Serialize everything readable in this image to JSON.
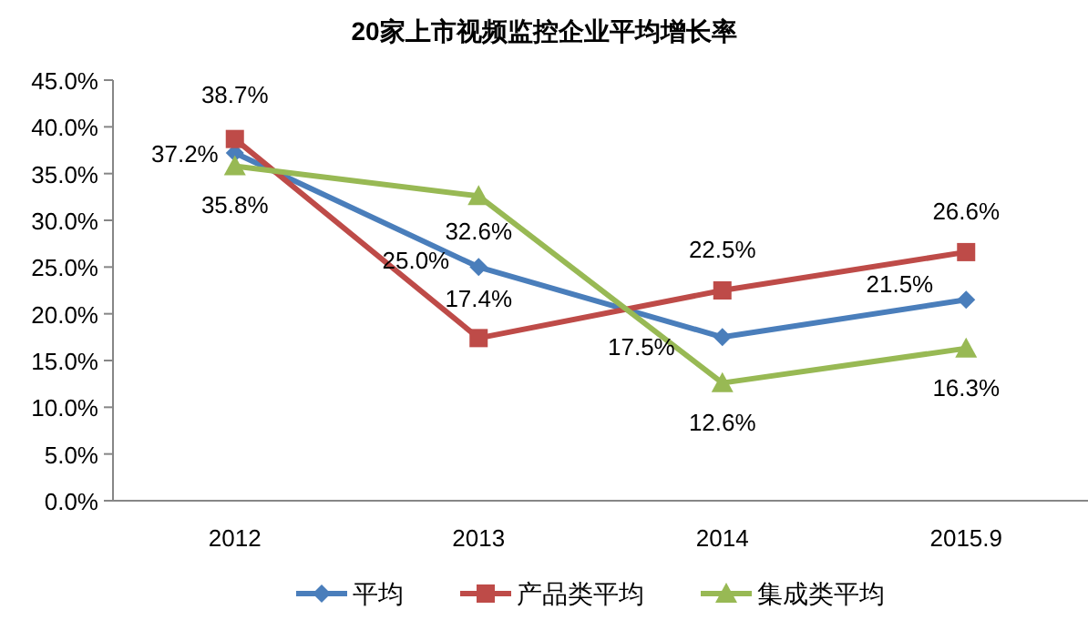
{
  "chart_data": {
    "type": "line",
    "title": "20家上市视频监控企业平均增长率",
    "categories": [
      "2012",
      "2013",
      "2014",
      "2015.9"
    ],
    "series": [
      {
        "name": "平均",
        "color": "#4a7ebb",
        "marker": "diamond",
        "values": [
          37.2,
          25.0,
          17.5,
          21.5
        ],
        "value_labels": [
          "37.2%",
          "25.0%",
          "17.5%",
          "21.5%"
        ]
      },
      {
        "name": "产品类平均",
        "color": "#be4b48",
        "marker": "square",
        "values": [
          38.7,
          17.4,
          22.5,
          26.6
        ],
        "value_labels": [
          "38.7%",
          "17.4%",
          "22.5%",
          "26.6%"
        ]
      },
      {
        "name": "集成类平均",
        "color": "#98b954",
        "marker": "triangle",
        "values": [
          35.8,
          32.6,
          12.6,
          16.3
        ],
        "value_labels": [
          "35.8%",
          "32.6%",
          "12.6%",
          "16.3%"
        ]
      }
    ],
    "ylim": [
      0,
      45
    ],
    "yticks": [
      {
        "value": 0,
        "label": "0.0%"
      },
      {
        "value": 5,
        "label": "5.0%"
      },
      {
        "value": 10,
        "label": "10.0%"
      },
      {
        "value": 15,
        "label": "15.0%"
      },
      {
        "value": 20,
        "label": "20.0%"
      },
      {
        "value": 25,
        "label": "25.0%"
      },
      {
        "value": 30,
        "label": "30.0%"
      },
      {
        "value": 35,
        "label": "35.0%"
      },
      {
        "value": 40,
        "label": "40.0%"
      },
      {
        "value": 45,
        "label": "45.0%"
      }
    ],
    "grid": false,
    "legend": "bottom"
  }
}
